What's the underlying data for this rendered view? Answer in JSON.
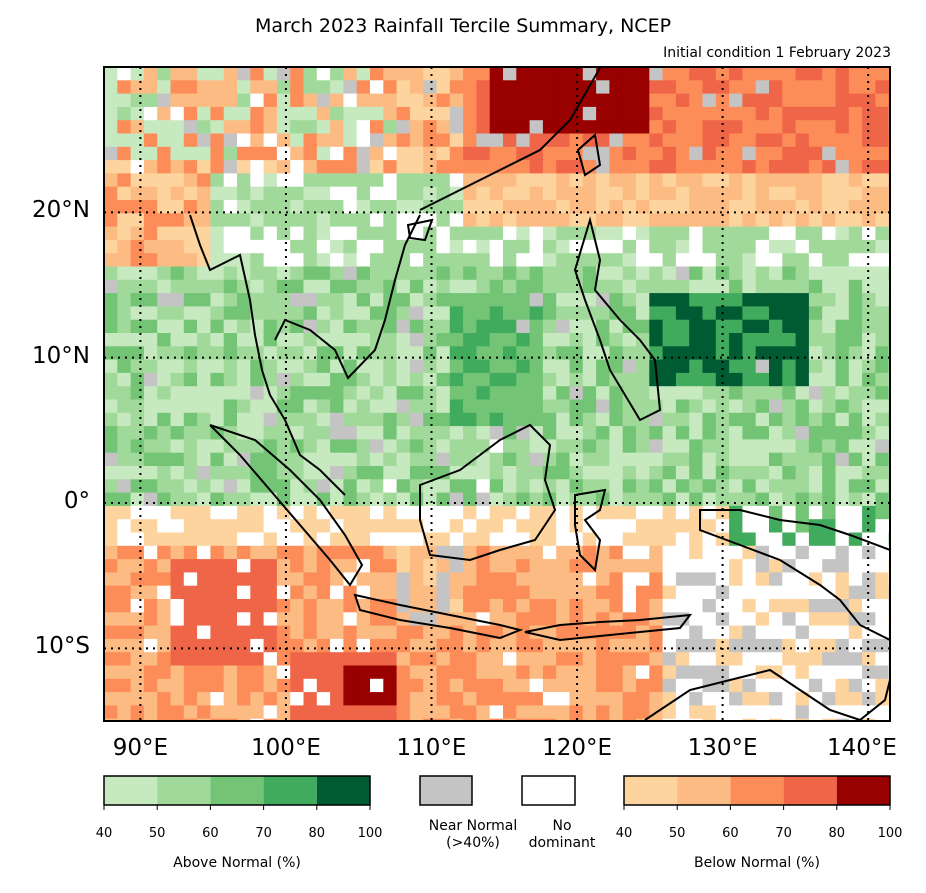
{
  "title": "March 2023 Rainfall Tercile Summary, NCEP",
  "subtitle": "Initial condition 1 February 2023",
  "map": {
    "lon_range": [
      87.5,
      141.5
    ],
    "lat_range": [
      -15,
      30
    ],
    "lat_ticks": [
      {
        "value": 20,
        "label": "20°N"
      },
      {
        "value": 10,
        "label": "10°N"
      },
      {
        "value": 0,
        "label": "0°"
      },
      {
        "value": -10,
        "label": "10°S"
      }
    ],
    "lon_ticks": [
      {
        "value": 90,
        "label": "90°E"
      },
      {
        "value": 100,
        "label": "100°E"
      },
      {
        "value": 110,
        "label": "110°E"
      },
      {
        "value": 120,
        "label": "120°E"
      },
      {
        "value": 130,
        "label": "130°E"
      },
      {
        "value": 140,
        "label": "140°E"
      }
    ],
    "gridlines": "dotted"
  },
  "legend": {
    "above": {
      "title": "Above Normal (%)",
      "colors": [
        "#c7e9c0",
        "#a1d99b",
        "#74c476",
        "#41ab5d",
        "#005a32"
      ],
      "ticks": [
        "40",
        "50",
        "60",
        "70",
        "80",
        "100"
      ]
    },
    "near": {
      "label_line1": "Near Normal",
      "label_line2": "(>40%)",
      "color": "#c4c4c4"
    },
    "none": {
      "label_line1": "No",
      "label_line2": "dominant",
      "color": "#ffffff"
    },
    "below": {
      "title": "Below Normal (%)",
      "colors": [
        "#fdd49e",
        "#fdbb84",
        "#fc8d59",
        "#ef6548",
        "#990000"
      ],
      "ticks": [
        "40",
        "50",
        "60",
        "70",
        "80",
        "100"
      ]
    }
  }
}
